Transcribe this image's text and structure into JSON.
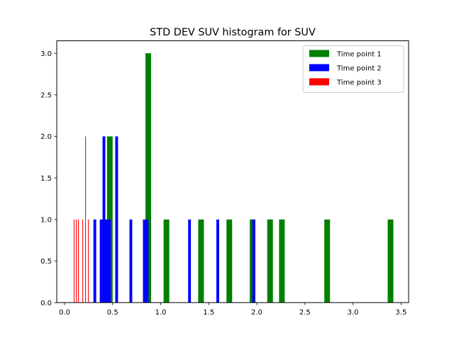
{
  "chart_data": {
    "type": "bar",
    "title": "STD DEV SUV histogram for SUV",
    "xlabel": "",
    "ylabel": "",
    "xlim": [
      -0.0815,
      3.5785
    ],
    "ylim": [
      0,
      3.15
    ],
    "xticks": [
      0.0,
      0.5,
      1.0,
      1.5,
      2.0,
      2.5,
      3.0,
      3.5
    ],
    "yticks": [
      0.0,
      0.5,
      1.0,
      1.5,
      2.0,
      2.5,
      3.0
    ],
    "xtick_labels": [
      "0.0",
      "0.5",
      "1.0",
      "1.5",
      "2.0",
      "2.5",
      "3.0",
      "3.5"
    ],
    "ytick_labels": [
      "0.0",
      "0.5",
      "1.0",
      "1.5",
      "2.0",
      "2.5",
      "3.0"
    ],
    "grid": false,
    "legend_position": "top-right",
    "series": [
      {
        "name": "Time point 1",
        "color": "#008000",
        "bins": [
          {
            "x0": 0.441,
            "x1": 0.5,
            "count": 2
          },
          {
            "x0": 0.841,
            "x1": 0.9,
            "count": 3
          },
          {
            "x0": 1.03,
            "x1": 1.089,
            "count": 1
          },
          {
            "x0": 1.39,
            "x1": 1.449,
            "count": 1
          },
          {
            "x0": 1.684,
            "x1": 1.743,
            "count": 1
          },
          {
            "x0": 1.926,
            "x1": 1.985,
            "count": 1
          },
          {
            "x0": 2.108,
            "x1": 2.167,
            "count": 1
          },
          {
            "x0": 2.231,
            "x1": 2.29,
            "count": 1
          },
          {
            "x0": 2.702,
            "x1": 2.761,
            "count": 1
          },
          {
            "x0": 3.361,
            "x1": 3.42,
            "count": 1
          }
        ]
      },
      {
        "name": "Time point 2",
        "color": "#0000ff",
        "bins": [
          {
            "x0": 0.3,
            "x1": 0.329,
            "count": 1
          },
          {
            "x0": 0.366,
            "x1": 0.395,
            "count": 1
          },
          {
            "x0": 0.395,
            "x1": 0.424,
            "count": 2
          },
          {
            "x0": 0.424,
            "x1": 0.453,
            "count": 1
          },
          {
            "x0": 0.453,
            "x1": 0.482,
            "count": 1
          },
          {
            "x0": 0.527,
            "x1": 0.556,
            "count": 2
          },
          {
            "x0": 0.675,
            "x1": 0.704,
            "count": 1
          },
          {
            "x0": 0.815,
            "x1": 0.844,
            "count": 1
          },
          {
            "x0": 0.844,
            "x1": 0.873,
            "count": 1
          },
          {
            "x0": 1.285,
            "x1": 1.314,
            "count": 1
          },
          {
            "x0": 1.579,
            "x1": 1.608,
            "count": 1
          },
          {
            "x0": 1.952,
            "x1": 1.981,
            "count": 1
          }
        ]
      },
      {
        "name": "Time point 3",
        "color": "#ff0000",
        "bins": [
          {
            "x0": 0.095,
            "x1": 0.103,
            "count": 1
          },
          {
            "x0": 0.118,
            "x1": 0.126,
            "count": 1
          },
          {
            "x0": 0.14,
            "x1": 0.148,
            "count": 1
          },
          {
            "x0": 0.185,
            "x1": 0.193,
            "count": 1
          },
          {
            "x0": 0.214,
            "x1": 0.222,
            "count": 2
          },
          {
            "x0": 0.244,
            "x1": 0.252,
            "count": 1
          }
        ]
      }
    ]
  }
}
